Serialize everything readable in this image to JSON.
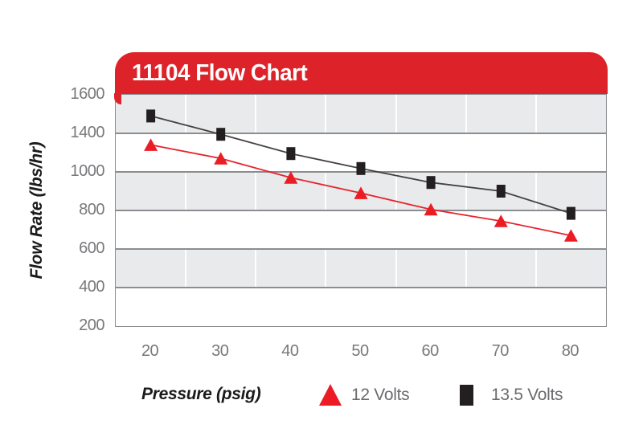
{
  "title": "11104 Flow Chart",
  "colors": {
    "banner_red": "#DD2329",
    "marker_red": "#EC1C24",
    "marker_black": "#231F20",
    "line_black": "#454142",
    "line_red": "#E8232B",
    "band_gray": "#E9EAEC",
    "band_white": "#FFFFFF",
    "hgrid_gray": "#8B8D90",
    "tick_text_gray": "#77787B",
    "legend_text_gray": "#6A6B6E"
  },
  "y_axis": {
    "title": "Flow Rate (lbs/hr)",
    "tick_labels": [
      "1600",
      "1400",
      "1000",
      "800",
      "600",
      "400",
      "200"
    ]
  },
  "x_axis": {
    "title": "Pressure (psig)",
    "tick_labels": [
      "20",
      "30",
      "40",
      "50",
      "60",
      "70",
      "80"
    ]
  },
  "legend": [
    {
      "label": "12 Volts",
      "marker": "triangle",
      "color": "#EC1C24"
    },
    {
      "label": "13.5 Volts",
      "marker": "square",
      "color": "#231F20"
    }
  ],
  "chart_data": {
    "type": "line",
    "title": "11104 Flow Chart",
    "xlabel": "Pressure (psig)",
    "ylabel": "Flow Rate (lbs/hr)",
    "x": [
      20,
      30,
      40,
      50,
      60,
      70,
      80
    ],
    "series": [
      {
        "name": "12 Volts",
        "marker": "triangle",
        "color": "#EC1C24",
        "values": [
          1280,
          1140,
          970,
          890,
          805,
          745,
          670
        ]
      },
      {
        "name": "13.5 Volts",
        "marker": "square",
        "color": "#231F20",
        "values": [
          1490,
          1390,
          1190,
          1035,
          945,
          900,
          785
        ]
      }
    ],
    "y_tick_values": [
      1600,
      1400,
      1000,
      800,
      600,
      400,
      200
    ],
    "axis_note": "Printed y-axis ticks are equally spaced and skip 1200 (1400 to 1000 is one band)",
    "grid": "horizontal gray gridlines; alternating gray/white bands; faint white vertical gridlines at category boundaries",
    "legend_position": "bottom"
  }
}
